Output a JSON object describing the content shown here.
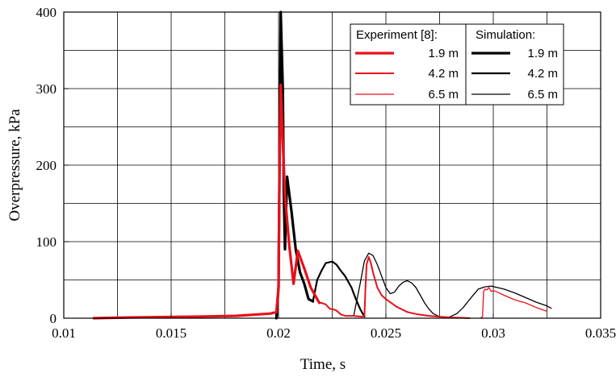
{
  "chart_data": {
    "type": "line",
    "xlabel": "Time, s",
    "ylabel": "Overpressure, kPa",
    "xlim": [
      0.01,
      0.035
    ],
    "ylim": [
      0,
      400
    ],
    "xticks": [
      "0.01",
      "0.015",
      "0.02",
      "0.025",
      "0.03",
      "0.035"
    ],
    "yticks": [
      "0",
      "100",
      "200",
      "300",
      "400"
    ],
    "grid": true,
    "legend": {
      "placement": "top-right",
      "experiment_header": "Experiment [8]:",
      "simulation_header": "Simulation:",
      "experiment_labels": [
        "1.9 m",
        "4.2 m",
        "6.5 m"
      ],
      "simulation_labels": [
        "1.9 m",
        "4.2 m",
        "6.5 m"
      ]
    },
    "series": [
      {
        "name": "1.9 m",
        "group": "experiment",
        "color": "#e8101a",
        "width": 3.2,
        "x": [
          0.0114,
          0.013,
          0.016,
          0.018,
          0.0196,
          0.0199,
          0.02,
          0.02005,
          0.0201,
          0.0202,
          0.0203,
          0.0205,
          0.0207,
          0.0209,
          0.0212,
          0.0215,
          0.0219
        ],
        "y": [
          0,
          1,
          2,
          3,
          6,
          8,
          40,
          200,
          305,
          230,
          160,
          95,
          45,
          88,
          65,
          40,
          20
        ]
      },
      {
        "name": "4.2 m",
        "group": "experiment",
        "color": "#e8101a",
        "width": 2,
        "x": [
          0.0215,
          0.0219,
          0.022,
          0.0222,
          0.0224,
          0.0225,
          0.0227,
          0.0229,
          0.0231,
          0.0235,
          0.0239,
          0.024,
          0.02405,
          0.0241,
          0.0242,
          0.0243,
          0.0244,
          0.0246,
          0.0248,
          0.025,
          0.0255,
          0.026,
          0.0265,
          0.027,
          0.0275,
          0.028,
          0.0285,
          0.0289
        ],
        "y": [
          40,
          20,
          20,
          18,
          12,
          12,
          10,
          5,
          3,
          3,
          2,
          3,
          40,
          70,
          80,
          72,
          60,
          40,
          30,
          25,
          15,
          8,
          5,
          3,
          2,
          1,
          0.5,
          0
        ]
      },
      {
        "name": "6.5 m",
        "group": "experiment",
        "color": "#e8101a",
        "width": 1.3,
        "x": [
          0.0294,
          0.0295,
          0.02955,
          0.0296,
          0.0297,
          0.0298,
          0.0299,
          0.03,
          0.0302,
          0.0305,
          0.031,
          0.0315,
          0.032,
          0.0325
        ],
        "y": [
          0,
          2,
          35,
          38,
          37,
          40,
          35,
          36,
          34,
          30,
          24,
          20,
          14,
          9
        ]
      },
      {
        "name": "1.9 m",
        "group": "simulation",
        "color": "#000000",
        "width": 3.2,
        "x": [
          0.0199,
          0.02,
          0.0201,
          0.0202,
          0.02025,
          0.0203,
          0.0204,
          0.0206,
          0.0208,
          0.021,
          0.0212,
          0.0214,
          0.0216
        ],
        "y": [
          0,
          40,
          400,
          300,
          160,
          90,
          185,
          140,
          90,
          60,
          45,
          25,
          22
        ]
      },
      {
        "name": "4.2 m",
        "group": "simulation",
        "color": "#000000",
        "width": 2.2,
        "x": [
          0.0216,
          0.0218,
          0.022,
          0.0222,
          0.0225,
          0.0227,
          0.0229,
          0.0231,
          0.0232,
          0.0234,
          0.0236,
          0.0238,
          0.024
        ],
        "y": [
          22,
          50,
          62,
          72,
          74,
          70,
          62,
          55,
          50,
          40,
          25,
          12,
          2
        ]
      },
      {
        "name": "6.5 m",
        "group": "simulation",
        "color": "#000000",
        "width": 1.3,
        "x": [
          0.0235,
          0.0238,
          0.024,
          0.0242,
          0.0244,
          0.0246,
          0.0248,
          0.025,
          0.0252,
          0.0254,
          0.0256,
          0.0258,
          0.026,
          0.0262,
          0.0264,
          0.0266,
          0.0268,
          0.027,
          0.0272,
          0.0275,
          0.0278,
          0.028,
          0.0283,
          0.0286,
          0.029,
          0.0293,
          0.0296,
          0.0299,
          0.0302,
          0.0305,
          0.031,
          0.0315,
          0.032,
          0.0325,
          0.0327
        ],
        "y": [
          3,
          45,
          75,
          85,
          82,
          70,
          55,
          40,
          32,
          34,
          42,
          47,
          49,
          46,
          40,
          30,
          20,
          12,
          6,
          2,
          1,
          2,
          6,
          14,
          28,
          38,
          41,
          42,
          40,
          38,
          33,
          27,
          21,
          16,
          13
        ]
      }
    ]
  }
}
